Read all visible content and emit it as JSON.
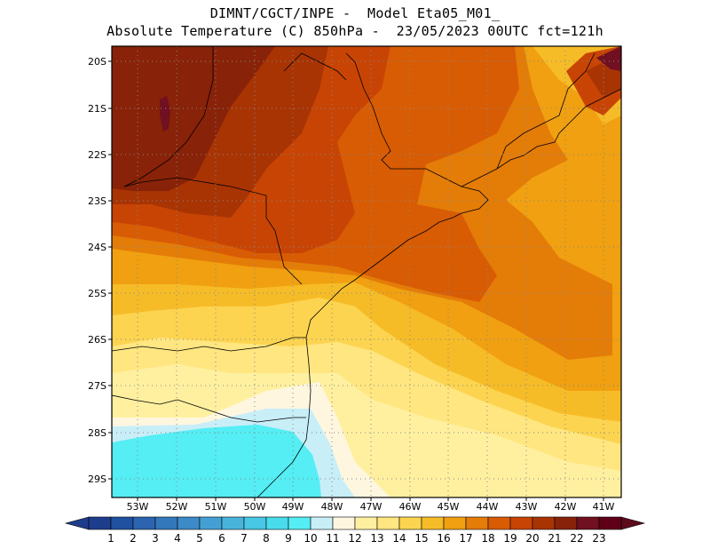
{
  "header": {
    "line1": "DIMNT/CGCT/INPE -  Model Eta05_M01_",
    "line2": "Absolute Temperature (C) 850hPa -  23/05/2023 00UTC fct=121h"
  },
  "axes": {
    "lat_labels": [
      "20S",
      "21S",
      "22S",
      "23S",
      "24S",
      "25S",
      "26S",
      "27S",
      "28S",
      "29S"
    ],
    "lon_labels": [
      "53W",
      "52W",
      "51W",
      "50W",
      "49W",
      "48W",
      "47W",
      "46W",
      "45W",
      "44W",
      "43W",
      "42W",
      "41W"
    ]
  },
  "colorbar": {
    "labels": [
      "1",
      "2",
      "3",
      "4",
      "5",
      "6",
      "7",
      "8",
      "9",
      "10",
      "11",
      "12",
      "13",
      "14",
      "15",
      "16",
      "17",
      "18",
      "19",
      "20",
      "21",
      "22",
      "23"
    ],
    "colors": [
      "#1e3c8c",
      "#2050a0",
      "#2c64b0",
      "#3478bc",
      "#3c8ac8",
      "#44a0d4",
      "#48b4dc",
      "#48c8e4",
      "#48dcec",
      "#54eef4",
      "#c8eef8",
      "#fff6e0",
      "#fff0a0",
      "#ffe680",
      "#fcd450",
      "#f6bc28",
      "#f0a010",
      "#e47c08",
      "#d85c04",
      "#c84404",
      "#a83404",
      "#882208",
      "#701020",
      "#600018"
    ],
    "low_arrow_color": "#1e3c8c",
    "high_arrow_color": "#5c0a1c"
  },
  "palette": {
    "t10": "#54eef4",
    "t11": "#c8eef8",
    "t12": "#fff6e0",
    "t13": "#fff0a0",
    "t14": "#ffe680",
    "t15": "#fcd450",
    "t16": "#f6bc28",
    "t17": "#f0a010",
    "t18": "#e47c08",
    "t19": "#d85c04",
    "t20": "#c84404",
    "t21": "#a83404",
    "t22": "#882208",
    "t23": "#701020"
  }
}
